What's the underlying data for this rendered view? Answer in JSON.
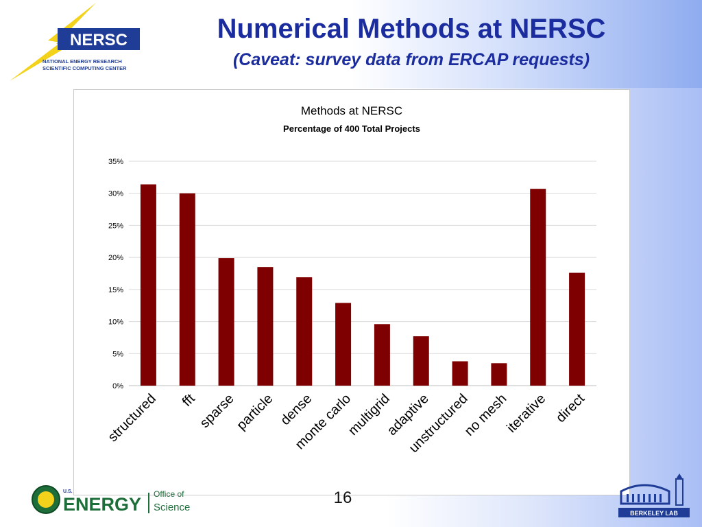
{
  "slide": {
    "title": "Numerical Methods at NERSC",
    "subtitle": "(Caveat: survey data from ERCAP requests)",
    "page_number": "16"
  },
  "logos": {
    "nersc_mark": "NERSC",
    "nersc_line1": "NATIONAL ENERGY RESEARCH",
    "nersc_line2": "SCIENTIFIC COMPUTING CENTER",
    "doe_small": "U.S.",
    "doe_word": "ENERGY",
    "doe_office_1": "Office of",
    "doe_office_2": "Science",
    "lbl_word": "BERKELEY LAB"
  },
  "colors": {
    "title": "#1b2c9e",
    "bar": "#7f0000",
    "grid": "#d9d9d9",
    "nersc_yellow": "#f2d21b",
    "nersc_blue": "#1f3c96",
    "doe_green": "#1e6e3a"
  },
  "chart_data": {
    "type": "bar",
    "title": "Methods at NERSC",
    "subtitle": "Percentage of 400 Total Projects",
    "categories": [
      "structured",
      "fft",
      "sparse",
      "particle",
      "dense",
      "monte carlo",
      "multigrid",
      "adaptive",
      "unstructured",
      "no mesh",
      "iterative",
      "direct"
    ],
    "values": [
      31.4,
      30.0,
      19.9,
      18.5,
      16.9,
      12.9,
      9.6,
      7.7,
      3.8,
      3.5,
      30.7,
      17.6
    ],
    "ylim": [
      0,
      35
    ],
    "yticks": [
      "0%",
      "5%",
      "10%",
      "15%",
      "20%",
      "25%",
      "30%",
      "35%"
    ],
    "ytick_values": [
      0,
      5,
      10,
      15,
      20,
      25,
      30,
      35
    ],
    "grid": true,
    "legend": "none"
  }
}
